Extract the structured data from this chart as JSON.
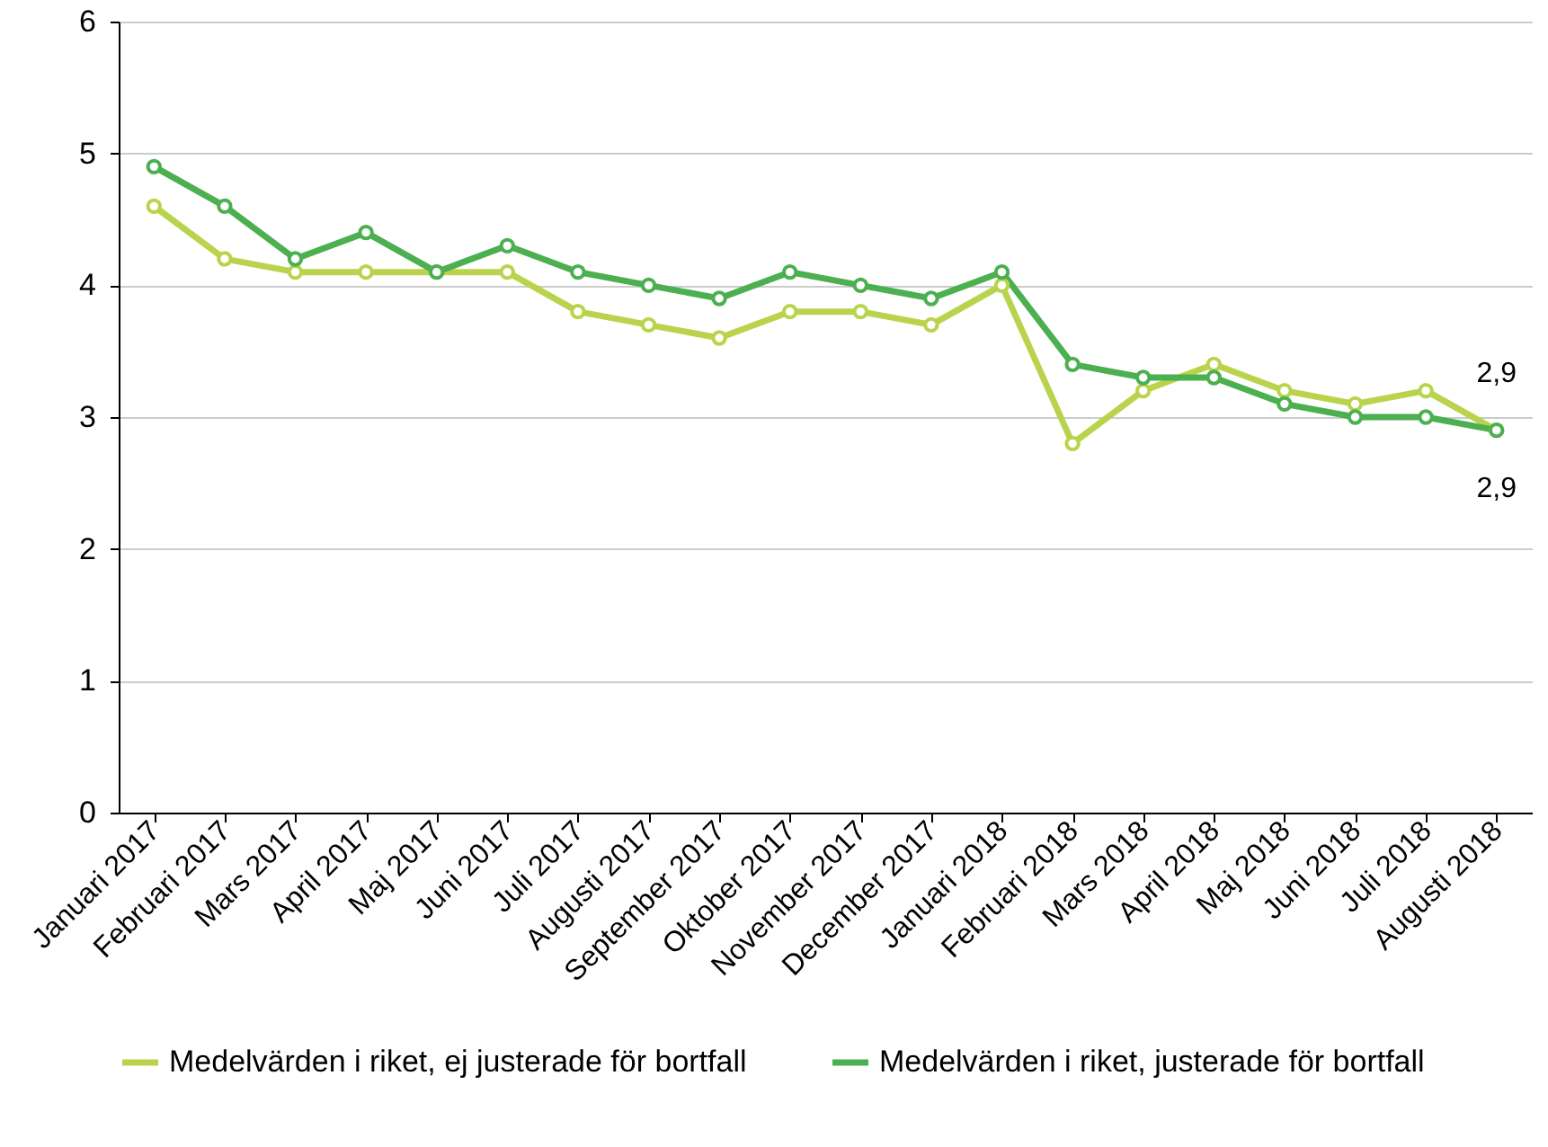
{
  "chart_data": {
    "type": "line",
    "categories": [
      "Januari 2017",
      "Februari 2017",
      "Mars 2017",
      "April 2017",
      "Maj 2017",
      "Juni 2017",
      "Juli 2017",
      "Augusti 2017",
      "September 2017",
      "Oktober 2017",
      "November 2017",
      "December 2017",
      "Januari 2018",
      "Februari 2018",
      "Mars 2018",
      "April 2018",
      "Maj 2018",
      "Juni 2018",
      "Juli 2018",
      "Augusti 2018"
    ],
    "series": [
      {
        "name": "Medelvärden i riket, ej justerade för bortfall",
        "color": "#b9d44c",
        "values": [
          4.6,
          4.2,
          4.1,
          4.1,
          4.1,
          4.1,
          3.8,
          3.7,
          3.6,
          3.8,
          3.8,
          3.7,
          4.0,
          2.8,
          3.2,
          3.4,
          3.2,
          3.1,
          3.2,
          2.9
        ]
      },
      {
        "name": "Medelvärden i riket, justerade för bortfall",
        "color": "#4caf50",
        "values": [
          4.9,
          4.6,
          4.2,
          4.4,
          4.1,
          4.3,
          4.1,
          4.0,
          3.9,
          4.1,
          4.0,
          3.9,
          4.1,
          3.4,
          3.3,
          3.3,
          3.1,
          3.0,
          3.0,
          2.9
        ]
      }
    ],
    "annotations": [
      {
        "text": "2,9",
        "x": "Augusti 2018",
        "y": 2.9
      },
      {
        "text": "2,9",
        "x": "Augusti 2018",
        "y": 2.9
      }
    ],
    "ylim": [
      0,
      6
    ],
    "yticks": [
      0,
      1,
      2,
      3,
      4,
      5,
      6
    ],
    "grid": "y",
    "legend": "bottom",
    "marker": "circle",
    "line_style": "solid"
  }
}
